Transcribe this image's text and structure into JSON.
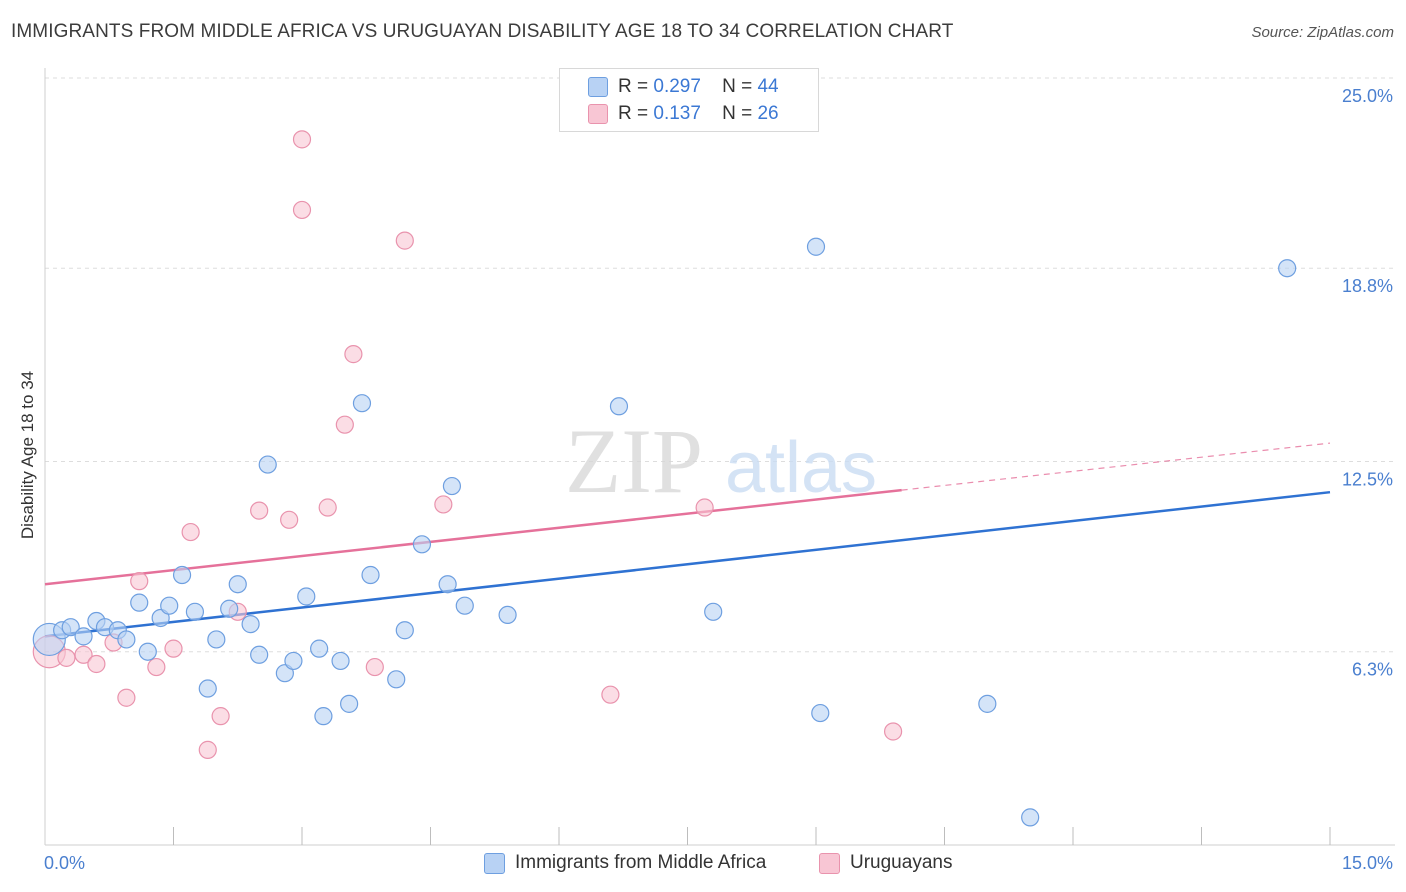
{
  "header": {
    "title": "IMMIGRANTS FROM MIDDLE AFRICA VS URUGUAYAN DISABILITY AGE 18 TO 34 CORRELATION CHART",
    "source": "Source: ZipAtlas.com"
  },
  "watermark": {
    "zip": "ZIP",
    "atlas": "atlas"
  },
  "legend": {
    "rows": [
      {
        "r_label": "R =",
        "r_value": "0.297",
        "n_label": "N =",
        "n_value": "44"
      },
      {
        "r_label": "R =",
        "r_value": "0.137",
        "n_label": "N =",
        "n_value": "26"
      }
    ]
  },
  "colors": {
    "blue_fill": "#b8d2f4",
    "blue_stroke": "#6e9fe0",
    "blue_line": "#2f72d2",
    "pink_fill": "#f8c6d4",
    "pink_stroke": "#e993ad",
    "pink_line": "#e5719a",
    "grid": "#dddddd",
    "tick_text": "#4a7fcf"
  },
  "chart_data": {
    "type": "scatter",
    "title": "IMMIGRANTS FROM MIDDLE AFRICA VS URUGUAYAN DISABILITY AGE 18 TO 34 CORRELATION CHART",
    "xlabel": "",
    "ylabel": "Disability Age 18 to 34",
    "xlim": [
      0,
      15
    ],
    "ylim": [
      0,
      25
    ],
    "x_tick_labels": [
      "0.0%",
      "15.0%"
    ],
    "y_ticks": [
      {
        "value": 6.3,
        "label": "6.3%"
      },
      {
        "value": 12.5,
        "label": "12.5%"
      },
      {
        "value": 18.8,
        "label": "18.8%"
      },
      {
        "value": 25.0,
        "label": "25.0%"
      }
    ],
    "grid": true,
    "legend_position": "top-center",
    "series": [
      {
        "name": "Immigrants from Middle Africa",
        "color": "blue",
        "r": 0.297,
        "n": 44,
        "trend": {
          "x0": 0.0,
          "y0": 6.8,
          "x1": 15.0,
          "y1": 11.5,
          "dashed_from": null
        },
        "points": [
          [
            0.05,
            6.7
          ],
          [
            0.2,
            7.0
          ],
          [
            0.3,
            7.1
          ],
          [
            0.45,
            6.8
          ],
          [
            0.6,
            7.3
          ],
          [
            0.7,
            7.1
          ],
          [
            0.85,
            7.0
          ],
          [
            0.95,
            6.7
          ],
          [
            1.1,
            7.9
          ],
          [
            1.2,
            6.3
          ],
          [
            1.35,
            7.4
          ],
          [
            1.45,
            7.8
          ],
          [
            1.6,
            8.8
          ],
          [
            1.75,
            7.6
          ],
          [
            1.9,
            5.1
          ],
          [
            2.0,
            6.7
          ],
          [
            2.15,
            7.7
          ],
          [
            2.25,
            8.5
          ],
          [
            2.4,
            7.2
          ],
          [
            2.5,
            6.2
          ],
          [
            2.6,
            12.4
          ],
          [
            2.8,
            5.6
          ],
          [
            2.9,
            6.0
          ],
          [
            3.05,
            8.1
          ],
          [
            3.2,
            6.4
          ],
          [
            3.25,
            4.2
          ],
          [
            3.45,
            6.0
          ],
          [
            3.55,
            4.6
          ],
          [
            3.7,
            14.4
          ],
          [
            3.8,
            8.8
          ],
          [
            4.1,
            5.4
          ],
          [
            4.2,
            7.0
          ],
          [
            4.4,
            9.8
          ],
          [
            4.7,
            8.5
          ],
          [
            4.75,
            11.7
          ],
          [
            4.9,
            7.8
          ],
          [
            5.4,
            7.5
          ],
          [
            6.7,
            14.3
          ],
          [
            7.8,
            7.6
          ],
          [
            9.0,
            19.5
          ],
          [
            9.05,
            4.3
          ],
          [
            11.0,
            4.6
          ],
          [
            11.5,
            0.9
          ],
          [
            14.5,
            18.8
          ]
        ]
      },
      {
        "name": "Uruguayans",
        "color": "pink",
        "r": 0.137,
        "n": 26,
        "trend": {
          "x0": 0.0,
          "y0": 8.5,
          "x1": 15.0,
          "y1": 13.1,
          "dashed_from": 10.0
        },
        "points": [
          [
            0.05,
            6.3
          ],
          [
            0.25,
            6.1
          ],
          [
            0.45,
            6.2
          ],
          [
            0.6,
            5.9
          ],
          [
            0.8,
            6.6
          ],
          [
            0.95,
            4.8
          ],
          [
            1.1,
            8.6
          ],
          [
            1.3,
            5.8
          ],
          [
            1.5,
            6.4
          ],
          [
            1.7,
            10.2
          ],
          [
            1.9,
            3.1
          ],
          [
            2.05,
            4.2
          ],
          [
            2.25,
            7.6
          ],
          [
            2.5,
            10.9
          ],
          [
            2.85,
            10.6
          ],
          [
            3.0,
            23.0
          ],
          [
            3.0,
            20.7
          ],
          [
            3.3,
            11.0
          ],
          [
            3.5,
            13.7
          ],
          [
            3.6,
            16.0
          ],
          [
            3.85,
            5.8
          ],
          [
            4.2,
            19.7
          ],
          [
            4.65,
            11.1
          ],
          [
            6.6,
            4.9
          ],
          [
            7.7,
            11.0
          ],
          [
            9.9,
            3.7
          ]
        ]
      }
    ]
  },
  "bottom_legend": {
    "items": [
      {
        "label": "Immigrants from Middle Africa"
      },
      {
        "label": "Uruguayans"
      }
    ]
  }
}
